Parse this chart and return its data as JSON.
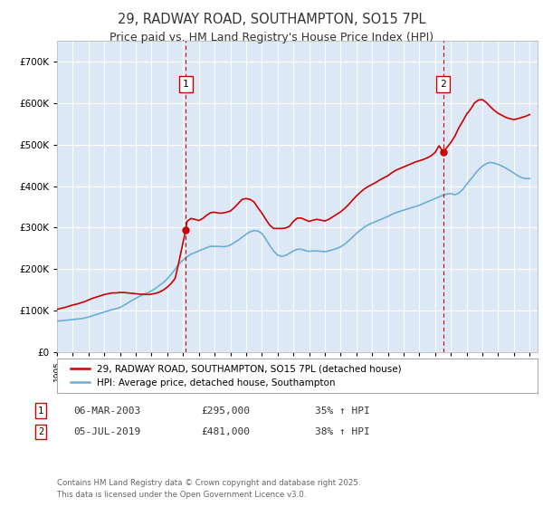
{
  "title": "29, RADWAY ROAD, SOUTHAMPTON, SO15 7PL",
  "subtitle": "Price paid vs. HM Land Registry's House Price Index (HPI)",
  "title_fontsize": 10.5,
  "subtitle_fontsize": 9,
  "background_color": "#ffffff",
  "plot_bg_color": "#dce8f5",
  "line_color_hpi": "#6baed6",
  "line_color_property": "#cc0000",
  "ylim": [
    0,
    750000
  ],
  "yticks": [
    0,
    100000,
    200000,
    300000,
    400000,
    500000,
    600000,
    700000
  ],
  "ytick_labels": [
    "£0",
    "£100K",
    "£200K",
    "£300K",
    "£400K",
    "£500K",
    "£600K",
    "£700K"
  ],
  "legend_entries": [
    "29, RADWAY ROAD, SOUTHAMPTON, SO15 7PL (detached house)",
    "HPI: Average price, detached house, Southampton"
  ],
  "sale1_date": "06-MAR-2003",
  "sale1_price": 295000,
  "sale1_label": "1",
  "sale1_x": 2003.17,
  "sale2_date": "05-JUL-2019",
  "sale2_price": 481000,
  "sale2_label": "2",
  "sale2_x": 2019.51,
  "sale1_col1": "06-MAR-2003",
  "sale1_col2": "£295,000",
  "sale1_col3": "35% ↑ HPI",
  "sale2_col1": "05-JUL-2019",
  "sale2_col2": "£481,000",
  "sale2_col3": "38% ↑ HPI",
  "footer": "Contains HM Land Registry data © Crown copyright and database right 2025.\nThis data is licensed under the Open Government Licence v3.0.",
  "hpi_years": [
    1995.0,
    1995.25,
    1995.5,
    1995.75,
    1996.0,
    1996.25,
    1996.5,
    1996.75,
    1997.0,
    1997.25,
    1997.5,
    1997.75,
    1998.0,
    1998.25,
    1998.5,
    1998.75,
    1999.0,
    1999.25,
    1999.5,
    1999.75,
    2000.0,
    2000.25,
    2000.5,
    2000.75,
    2001.0,
    2001.25,
    2001.5,
    2001.75,
    2002.0,
    2002.25,
    2002.5,
    2002.75,
    2003.0,
    2003.25,
    2003.5,
    2003.75,
    2004.0,
    2004.25,
    2004.5,
    2004.75,
    2005.0,
    2005.25,
    2005.5,
    2005.75,
    2006.0,
    2006.25,
    2006.5,
    2006.75,
    2007.0,
    2007.25,
    2007.5,
    2007.75,
    2008.0,
    2008.25,
    2008.5,
    2008.75,
    2009.0,
    2009.25,
    2009.5,
    2009.75,
    2010.0,
    2010.25,
    2010.5,
    2010.75,
    2011.0,
    2011.25,
    2011.5,
    2011.75,
    2012.0,
    2012.25,
    2012.5,
    2012.75,
    2013.0,
    2013.25,
    2013.5,
    2013.75,
    2014.0,
    2014.25,
    2014.5,
    2014.75,
    2015.0,
    2015.25,
    2015.5,
    2015.75,
    2016.0,
    2016.25,
    2016.5,
    2016.75,
    2017.0,
    2017.25,
    2017.5,
    2017.75,
    2018.0,
    2018.25,
    2018.5,
    2018.75,
    2019.0,
    2019.25,
    2019.5,
    2019.75,
    2020.0,
    2020.25,
    2020.5,
    2020.75,
    2021.0,
    2021.25,
    2021.5,
    2021.75,
    2022.0,
    2022.25,
    2022.5,
    2022.75,
    2023.0,
    2023.25,
    2023.5,
    2023.75,
    2024.0,
    2024.25,
    2024.5,
    2024.75,
    2025.0
  ],
  "hpi_values": [
    75000,
    76000,
    77000,
    78000,
    79000,
    80000,
    81000,
    82500,
    85000,
    88000,
    91000,
    94000,
    97000,
    100000,
    103000,
    105000,
    108000,
    113000,
    119000,
    125000,
    130000,
    135000,
    139000,
    143000,
    148000,
    154000,
    161000,
    168000,
    177000,
    188000,
    200000,
    213000,
    222000,
    230000,
    236000,
    240000,
    244000,
    248000,
    252000,
    255000,
    255000,
    255000,
    254000,
    255000,
    258000,
    264000,
    270000,
    277000,
    284000,
    290000,
    293000,
    292000,
    286000,
    273000,
    257000,
    244000,
    234000,
    231000,
    233000,
    238000,
    244000,
    248000,
    248000,
    245000,
    243000,
    244000,
    244000,
    243000,
    242000,
    244000,
    247000,
    250000,
    254000,
    260000,
    268000,
    277000,
    286000,
    294000,
    301000,
    307000,
    311000,
    315000,
    319000,
    323000,
    327000,
    332000,
    336000,
    339000,
    342000,
    345000,
    348000,
    351000,
    354000,
    358000,
    362000,
    366000,
    370000,
    374000,
    378000,
    381000,
    382000,
    379000,
    383000,
    392000,
    404000,
    416000,
    428000,
    439000,
    448000,
    454000,
    457000,
    455000,
    452000,
    448000,
    443000,
    437000,
    431000,
    425000,
    420000,
    418000,
    418000
  ],
  "prop_years": [
    1995.0,
    1995.25,
    1995.5,
    1995.75,
    1996.0,
    1996.25,
    1996.5,
    1996.75,
    1997.0,
    1997.25,
    1997.5,
    1997.75,
    1998.0,
    1998.25,
    1998.5,
    1998.75,
    1999.0,
    1999.25,
    1999.5,
    1999.75,
    2000.0,
    2000.25,
    2000.5,
    2000.75,
    2001.0,
    2001.25,
    2001.5,
    2001.75,
    2002.0,
    2002.25,
    2002.5,
    2002.75,
    2003.17,
    2003.25,
    2003.5,
    2003.75,
    2004.0,
    2004.25,
    2004.5,
    2004.75,
    2005.0,
    2005.25,
    2005.5,
    2005.75,
    2006.0,
    2006.25,
    2006.5,
    2006.75,
    2007.0,
    2007.25,
    2007.5,
    2007.75,
    2008.0,
    2008.25,
    2008.5,
    2008.75,
    2009.0,
    2009.25,
    2009.5,
    2009.75,
    2010.0,
    2010.25,
    2010.5,
    2010.75,
    2011.0,
    2011.25,
    2011.5,
    2011.75,
    2012.0,
    2012.25,
    2012.5,
    2012.75,
    2013.0,
    2013.25,
    2013.5,
    2013.75,
    2014.0,
    2014.25,
    2014.5,
    2014.75,
    2015.0,
    2015.25,
    2015.5,
    2015.75,
    2016.0,
    2016.25,
    2016.5,
    2016.75,
    2017.0,
    2017.25,
    2017.5,
    2017.75,
    2018.0,
    2018.25,
    2018.5,
    2018.75,
    2019.0,
    2019.25,
    2019.51,
    2019.75,
    2020.0,
    2020.25,
    2020.5,
    2020.75,
    2021.0,
    2021.25,
    2021.5,
    2021.75,
    2022.0,
    2022.25,
    2022.5,
    2022.75,
    2023.0,
    2023.25,
    2023.5,
    2023.75,
    2024.0,
    2024.25,
    2024.5,
    2024.75,
    2025.0
  ],
  "prop_values": [
    103000,
    106000,
    108000,
    111000,
    114000,
    116000,
    119000,
    122000,
    126000,
    130000,
    133000,
    136000,
    139000,
    141000,
    143000,
    143000,
    144000,
    144000,
    143000,
    142000,
    141000,
    140000,
    140000,
    139000,
    140000,
    142000,
    145000,
    150000,
    157000,
    166000,
    178000,
    220000,
    295000,
    315000,
    322000,
    320000,
    317000,
    322000,
    330000,
    336000,
    337000,
    335000,
    335000,
    337000,
    340000,
    348000,
    358000,
    368000,
    370000,
    368000,
    362000,
    348000,
    335000,
    320000,
    306000,
    298000,
    298000,
    298000,
    299000,
    303000,
    315000,
    323000,
    323000,
    319000,
    315000,
    318000,
    320000,
    318000,
    316000,
    320000,
    326000,
    332000,
    338000,
    346000,
    355000,
    366000,
    376000,
    385000,
    393000,
    399000,
    404000,
    409000,
    415000,
    420000,
    425000,
    432000,
    438000,
    442000,
    446000,
    450000,
    454000,
    458000,
    461000,
    464000,
    468000,
    473000,
    481000,
    497000,
    481000,
    493000,
    505000,
    520000,
    540000,
    556000,
    573000,
    585000,
    600000,
    607000,
    608000,
    601000,
    591000,
    582000,
    575000,
    570000,
    565000,
    562000,
    560000,
    562000,
    565000,
    568000,
    572000
  ]
}
